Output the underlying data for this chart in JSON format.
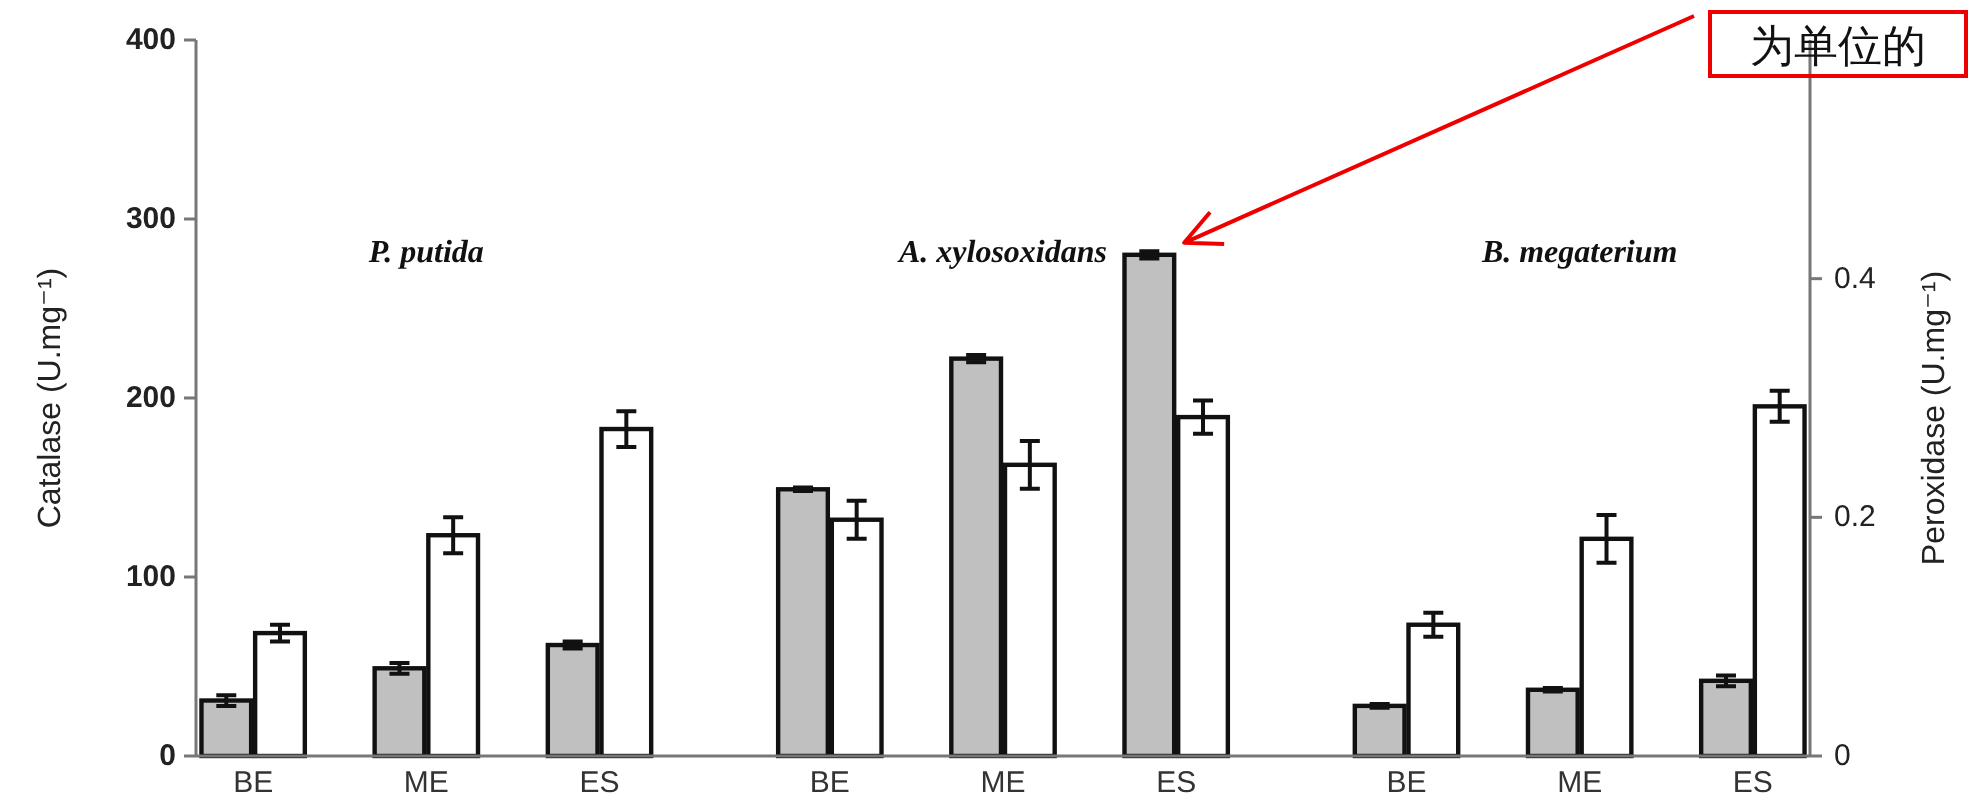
{
  "chart_data": {
    "type": "bar",
    "categories": [
      "BE",
      "ME",
      "ES",
      "BE",
      "ME",
      "ES",
      "BE",
      "ME",
      "ES"
    ],
    "ylabel": "Catalase (U.mg⁻¹)",
    "y2label": "Peroxidase (U.mg⁻¹)",
    "ylim": [
      0,
      400
    ],
    "yticks": [
      0,
      100,
      200,
      300,
      400
    ],
    "y2lim": [
      0,
      0.6
    ],
    "y2ticks": [
      0,
      0.2,
      0.4
    ],
    "series": [
      {
        "color": "#c0c0c0",
        "values": [
          31,
          49,
          62,
          149,
          222,
          280,
          28,
          37,
          42
        ],
        "errors": [
          3,
          3,
          2,
          1,
          2,
          2,
          1,
          1,
          3
        ]
      },
      {
        "color": "#ffffff",
        "axis": "y2",
        "values": [
          0.103,
          0.185,
          0.274,
          0.198,
          0.244,
          0.284,
          0.11,
          0.182,
          0.293
        ],
        "errors": [
          0.007,
          0.015,
          0.015,
          0.016,
          0.02,
          0.014,
          0.01,
          0.02,
          0.013
        ]
      }
    ],
    "annotations": [
      "P. putida",
      "A. xylosoxidans",
      "B. megaterium",
      "为单位的"
    ],
    "grid": false
  }
}
